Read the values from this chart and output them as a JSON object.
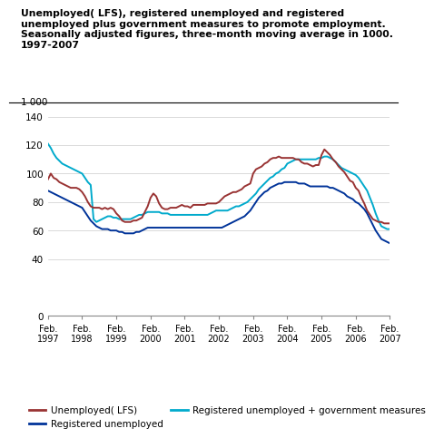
{
  "title": "Unemployed( LFS), registered unemployed and registered\nunemployed plus government measures to promote employment.\nSeasonally adjusted figures, three-month moving average in 1000.\n1997-2007",
  "ylabel": "1 000",
  "ylim": [
    0,
    143
  ],
  "yticks": [
    0,
    40,
    60,
    80,
    100,
    120,
    140
  ],
  "x_tick_labels": [
    "Feb.\n1997",
    "Feb.\n1998",
    "Feb.\n1999",
    "Feb.\n2000",
    "Feb.\n2001",
    "Feb.\n2002",
    "Feb.\n2003",
    "Feb.\n2004",
    "Feb.\n2005",
    "Feb.\n2006",
    "Feb.\n2007"
  ],
  "x_tick_positions": [
    0,
    12,
    24,
    36,
    48,
    60,
    72,
    84,
    96,
    108,
    120
  ],
  "legend": [
    {
      "label": "Unemployed( LFS)",
      "color": "#993333"
    },
    {
      "label": "Registered unemployed",
      "color": "#003399"
    },
    {
      "label": "Registered unemployed + government measures",
      "color": "#00AACC"
    }
  ],
  "series": {
    "lfs": [
      96,
      100,
      97,
      96,
      94,
      93,
      92,
      91,
      90,
      90,
      90,
      89,
      87,
      84,
      80,
      77,
      76,
      76,
      76,
      75,
      76,
      75,
      76,
      75,
      72,
      70,
      67,
      66,
      66,
      66,
      67,
      67,
      68,
      69,
      73,
      77,
      83,
      86,
      84,
      79,
      76,
      75,
      75,
      76,
      76,
      76,
      77,
      78,
      77,
      77,
      76,
      78,
      78,
      78,
      78,
      78,
      79,
      79,
      79,
      79,
      80,
      82,
      84,
      85,
      86,
      87,
      87,
      88,
      89,
      91,
      92,
      93,
      100,
      103,
      104,
      105,
      107,
      108,
      110,
      111,
      111,
      112,
      111,
      111,
      111,
      111,
      111,
      110,
      110,
      108,
      107,
      107,
      106,
      105,
      106,
      106,
      113,
      117,
      115,
      113,
      110,
      108,
      105,
      103,
      101,
      98,
      95,
      94,
      90,
      88,
      83,
      79,
      74,
      71,
      68,
      67,
      66,
      66,
      65,
      65,
      65
    ],
    "reg": [
      88,
      87,
      86,
      85,
      84,
      83,
      82,
      81,
      80,
      79,
      78,
      77,
      76,
      73,
      70,
      67,
      65,
      63,
      62,
      61,
      61,
      61,
      60,
      60,
      60,
      59,
      59,
      58,
      58,
      58,
      58,
      59,
      59,
      60,
      61,
      62,
      62,
      62,
      62,
      62,
      62,
      62,
      62,
      62,
      62,
      62,
      62,
      62,
      62,
      62,
      62,
      62,
      62,
      62,
      62,
      62,
      62,
      62,
      62,
      62,
      62,
      62,
      63,
      64,
      65,
      66,
      67,
      68,
      69,
      70,
      72,
      74,
      77,
      80,
      83,
      85,
      87,
      88,
      90,
      91,
      92,
      93,
      93,
      94,
      94,
      94,
      94,
      94,
      93,
      93,
      93,
      92,
      91,
      91,
      91,
      91,
      91,
      91,
      91,
      90,
      90,
      89,
      88,
      87,
      86,
      84,
      83,
      82,
      80,
      79,
      77,
      75,
      72,
      68,
      64,
      60,
      57,
      54,
      53,
      52,
      51
    ],
    "reg_gov": [
      121,
      118,
      114,
      111,
      109,
      107,
      106,
      105,
      104,
      103,
      102,
      101,
      100,
      97,
      94,
      92,
      68,
      66,
      67,
      68,
      69,
      70,
      70,
      69,
      69,
      68,
      68,
      68,
      68,
      68,
      69,
      70,
      71,
      71,
      72,
      73,
      73,
      73,
      73,
      73,
      72,
      72,
      72,
      71,
      71,
      71,
      71,
      71,
      71,
      71,
      71,
      71,
      71,
      71,
      71,
      71,
      71,
      72,
      73,
      74,
      74,
      74,
      74,
      74,
      75,
      76,
      77,
      77,
      78,
      79,
      80,
      82,
      84,
      86,
      89,
      91,
      93,
      95,
      97,
      98,
      100,
      101,
      103,
      104,
      107,
      108,
      109,
      110,
      110,
      110,
      110,
      110,
      110,
      110,
      110,
      111,
      111,
      112,
      112,
      111,
      110,
      108,
      106,
      104,
      103,
      102,
      101,
      100,
      99,
      97,
      94,
      91,
      88,
      83,
      78,
      72,
      67,
      63,
      62,
      61,
      61
    ]
  }
}
